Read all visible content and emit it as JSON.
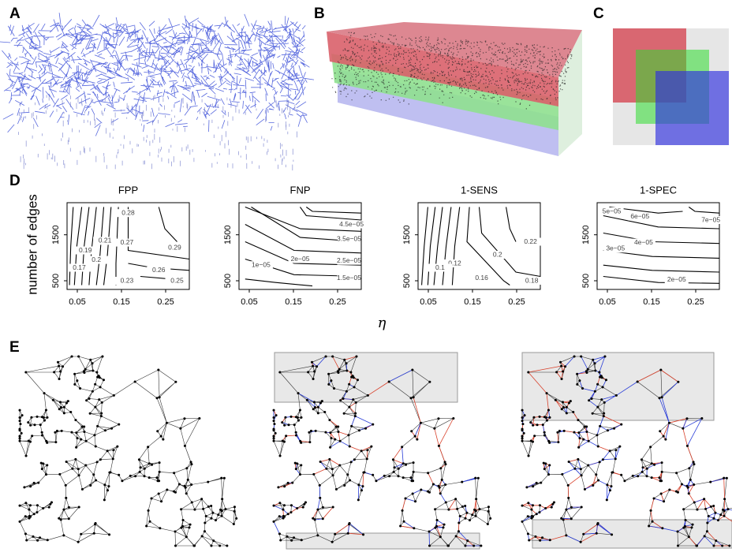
{
  "panels": {
    "a": "A",
    "b": "B",
    "c": "C",
    "d": "D",
    "e": "E"
  },
  "panel_d": {
    "y_label": "number of edges",
    "x_label": "η",
    "x_ticks": [
      "0.05",
      "0.15",
      "0.25"
    ],
    "y_ticks": [
      "500",
      "1500"
    ],
    "plots": [
      {
        "title": "FPP",
        "contour_labels": [
          "0.28",
          "0.29",
          "0.27",
          "0.26",
          "0.25",
          "0.23",
          "0.21",
          "0.2",
          "0.19",
          "0.17"
        ]
      },
      {
        "title": "FNP",
        "contour_labels": [
          "4.5e−05",
          "3.5e−05",
          "2.5e−05",
          "2e−05",
          "1.5e−05",
          "1e−05"
        ]
      },
      {
        "title": "1-SENS",
        "contour_labels": [
          "0.22",
          "0.2",
          "0.18",
          "0.16",
          "0.12",
          "0.1"
        ]
      },
      {
        "title": "1-SPEC",
        "contour_labels": [
          "5e−05",
          "6e−05",
          "7e−05",
          "4e−05",
          "3e−05",
          "2e−05"
        ]
      }
    ]
  }
}
